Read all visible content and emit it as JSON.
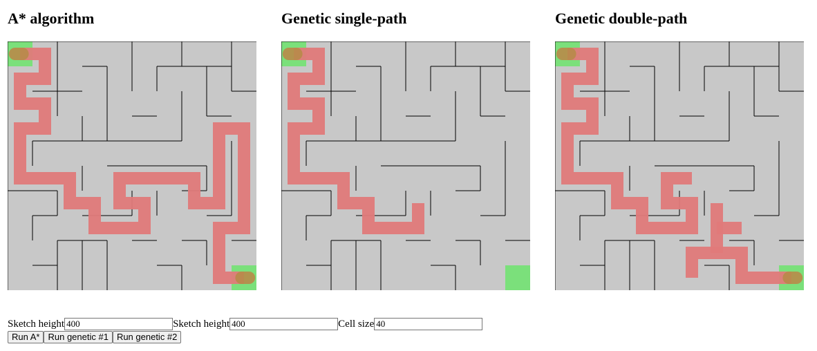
{
  "panels": [
    {
      "title": "A* algorithm"
    },
    {
      "title": "Genetic single-path"
    },
    {
      "title": "Genetic double-path"
    }
  ],
  "maze": {
    "rows": 10,
    "cols": 10,
    "background_color": "#c8c8c8",
    "wall_color": "#000000",
    "endpoint_color": "#7be07b",
    "path_color": "#e07a7a",
    "path_end_color": "#b88b4a",
    "start_cell": [
      0,
      0
    ],
    "goal_cell": [
      9,
      9
    ],
    "walls": [
      [
        [
          0,
          0
        ],
        [
          10,
          0
        ]
      ],
      [
        [
          0,
          0
        ],
        [
          0,
          10
        ]
      ],
      [
        [
          2,
          0
        ],
        [
          2,
          3
        ]
      ],
      [
        [
          5,
          0
        ],
        [
          5,
          2
        ]
      ],
      [
        [
          7,
          0
        ],
        [
          7,
          1
        ]
      ],
      [
        [
          9,
          0
        ],
        [
          9,
          1
        ]
      ],
      [
        [
          3,
          1
        ],
        [
          4,
          1
        ]
      ],
      [
        [
          6,
          1
        ],
        [
          9,
          1
        ]
      ],
      [
        [
          4,
          1
        ],
        [
          4,
          4
        ]
      ],
      [
        [
          6,
          1
        ],
        [
          6,
          2
        ]
      ],
      [
        [
          8,
          1
        ],
        [
          8,
          3
        ]
      ],
      [
        [
          9,
          1
        ],
        [
          9,
          2
        ]
      ],
      [
        [
          1,
          2
        ],
        [
          3,
          2
        ]
      ],
      [
        [
          9,
          2
        ],
        [
          10,
          2
        ]
      ],
      [
        [
          7,
          2
        ],
        [
          7,
          4
        ]
      ],
      [
        [
          3,
          3
        ],
        [
          3,
          4
        ]
      ],
      [
        [
          5,
          3
        ],
        [
          6,
          3
        ]
      ],
      [
        [
          8,
          3
        ],
        [
          9,
          3
        ]
      ],
      [
        [
          1,
          4
        ],
        [
          7,
          4
        ]
      ],
      [
        [
          1,
          4
        ],
        [
          1,
          5
        ]
      ],
      [
        [
          9,
          4
        ],
        [
          9,
          7
        ]
      ],
      [
        [
          3,
          5
        ],
        [
          3,
          6
        ]
      ],
      [
        [
          4,
          5
        ],
        [
          8,
          5
        ]
      ],
      [
        [
          8,
          5
        ],
        [
          8,
          6
        ]
      ],
      [
        [
          6,
          6
        ],
        [
          6,
          7
        ]
      ],
      [
        [
          7,
          6
        ],
        [
          8,
          6
        ]
      ],
      [
        [
          0,
          6
        ],
        [
          2,
          6
        ]
      ],
      [
        [
          2,
          6
        ],
        [
          2,
          7
        ]
      ],
      [
        [
          5,
          6
        ],
        [
          5,
          7
        ]
      ],
      [
        [
          1,
          7
        ],
        [
          2,
          7
        ]
      ],
      [
        [
          1,
          7
        ],
        [
          1,
          8
        ]
      ],
      [
        [
          3,
          7
        ],
        [
          5,
          7
        ]
      ],
      [
        [
          8,
          7
        ],
        [
          9,
          7
        ]
      ],
      [
        [
          2,
          8
        ],
        [
          4,
          8
        ]
      ],
      [
        [
          5,
          8
        ],
        [
          6,
          8
        ]
      ],
      [
        [
          7,
          8
        ],
        [
          8,
          8
        ]
      ],
      [
        [
          8,
          8
        ],
        [
          8,
          9
        ]
      ],
      [
        [
          9,
          8
        ],
        [
          10,
          8
        ]
      ],
      [
        [
          1,
          9
        ],
        [
          2,
          9
        ]
      ],
      [
        [
          6,
          9
        ],
        [
          7,
          9
        ]
      ],
      [
        [
          7,
          9
        ],
        [
          7,
          10
        ]
      ],
      [
        [
          2,
          8
        ],
        [
          2,
          10
        ]
      ],
      [
        [
          4,
          8
        ],
        [
          4,
          10
        ]
      ],
      [
        [
          3,
          8
        ],
        [
          3,
          10
        ]
      ]
    ],
    "paths": [
      [
        [
          [
            0.5,
            0.5
          ],
          [
            1.5,
            0.5
          ],
          [
            1.5,
            1.5
          ],
          [
            0.5,
            1.5
          ],
          [
            0.5,
            2.5
          ],
          [
            1.5,
            2.5
          ],
          [
            1.5,
            3.5
          ],
          [
            0.5,
            3.5
          ],
          [
            0.5,
            5.5
          ],
          [
            2.5,
            5.5
          ],
          [
            2.5,
            6.5
          ],
          [
            3.5,
            6.5
          ],
          [
            3.5,
            7.5
          ],
          [
            5.5,
            7.5
          ],
          [
            5.5,
            6.5
          ],
          [
            4.5,
            6.5
          ],
          [
            4.5,
            5.5
          ],
          [
            7.5,
            5.5
          ],
          [
            7.5,
            6.5
          ],
          [
            8.5,
            6.5
          ],
          [
            8.5,
            3.5
          ],
          [
            9.5,
            3.5
          ],
          [
            9.5,
            7.5
          ],
          [
            8.5,
            7.5
          ],
          [
            8.5,
            9.5
          ],
          [
            9.5,
            9.5
          ]
        ]
      ],
      [
        [
          [
            0.5,
            0.5
          ],
          [
            1.5,
            0.5
          ],
          [
            1.5,
            1.5
          ],
          [
            0.5,
            1.5
          ],
          [
            0.5,
            2.5
          ],
          [
            1.5,
            2.5
          ],
          [
            1.5,
            3.5
          ],
          [
            0.5,
            3.5
          ],
          [
            0.5,
            5.5
          ],
          [
            2.5,
            5.5
          ],
          [
            2.5,
            6.5
          ],
          [
            3.5,
            6.5
          ],
          [
            3.5,
            7.5
          ],
          [
            5.5,
            7.5
          ],
          [
            5.5,
            6.5
          ]
        ]
      ],
      [
        [
          [
            0.5,
            0.5
          ],
          [
            1.5,
            0.5
          ],
          [
            1.5,
            1.5
          ],
          [
            0.5,
            1.5
          ],
          [
            0.5,
            2.5
          ],
          [
            1.5,
            2.5
          ],
          [
            1.5,
            3.5
          ],
          [
            0.5,
            3.5
          ],
          [
            0.5,
            5.5
          ],
          [
            2.5,
            5.5
          ],
          [
            2.5,
            6.5
          ],
          [
            3.5,
            6.5
          ],
          [
            3.5,
            7.5
          ],
          [
            5.5,
            7.5
          ],
          [
            5.5,
            6.5
          ],
          [
            4.5,
            6.5
          ],
          [
            4.5,
            5.5
          ],
          [
            5.5,
            5.5
          ]
        ],
        [
          [
            9.5,
            9.5
          ],
          [
            7.5,
            9.5
          ],
          [
            7.5,
            8.5
          ],
          [
            5.5,
            8.5
          ],
          [
            5.5,
            9.5
          ]
        ],
        [
          [
            6.5,
            6.5
          ],
          [
            6.5,
            8.5
          ]
        ],
        [
          [
            6.5,
            7.5
          ],
          [
            7.5,
            7.5
          ]
        ]
      ]
    ]
  },
  "controls": {
    "field1_label": "Sketch height",
    "field1_value": "400",
    "field2_label": "Sketch height",
    "field2_value": "400",
    "field3_label": "Cell size",
    "field3_value": "40",
    "btn_astar": "Run A*",
    "btn_genetic1": "Run genetic #1",
    "btn_genetic2": "Run genetic #2"
  }
}
